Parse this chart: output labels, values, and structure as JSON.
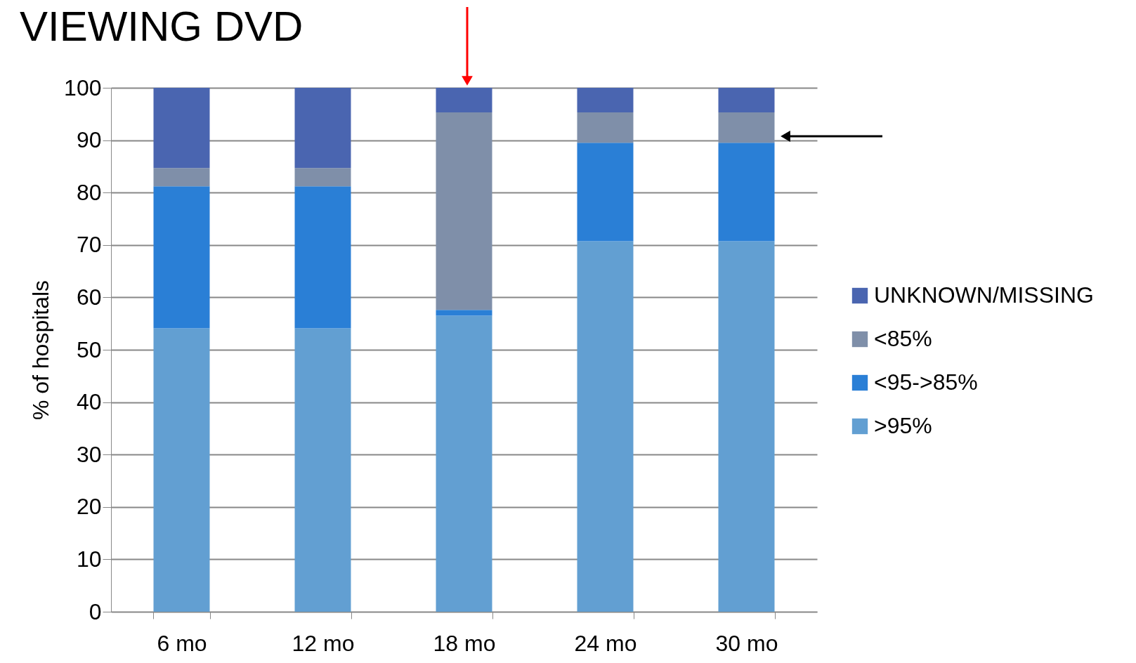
{
  "chart_data": {
    "type": "bar",
    "title": "VIEWING DVD",
    "ylabel": "% of hospitals",
    "stacked": true,
    "categories": [
      "6 mo",
      "12 mo",
      "18 mo",
      "24 mo",
      "30 mo"
    ],
    "series": [
      {
        "name": ">95%",
        "color": "#629fd2",
        "values": [
          54.1,
          54.1,
          56.5,
          70.7,
          70.7
        ]
      },
      {
        "name": "<95->85%",
        "color": "#2a7fd6",
        "values": [
          27.1,
          27.1,
          1.1,
          18.8,
          18.8
        ]
      },
      {
        "name": "<85%",
        "color": "#7f8fa9",
        "values": [
          3.5,
          3.5,
          37.7,
          5.8,
          5.8
        ]
      },
      {
        "name": "UNKNOWN/MISSING",
        "color": "#4a65b0",
        "values": [
          15.3,
          15.3,
          4.7,
          4.7,
          4.7
        ]
      }
    ],
    "ylim": [
      0,
      100
    ],
    "yticks": [
      0,
      10,
      20,
      30,
      40,
      50,
      60,
      70,
      80,
      90,
      100
    ],
    "grid": "y",
    "legend": "right"
  }
}
